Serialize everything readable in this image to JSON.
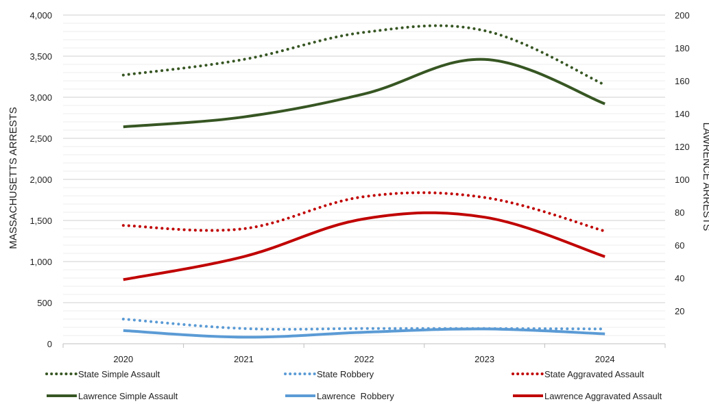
{
  "chart_data": {
    "type": "line",
    "categories": [
      "2020",
      "2021",
      "2022",
      "2023",
      "2024"
    ],
    "left_axis": {
      "label": "MASSACHUSETTS ARRESTS",
      "ylim": [
        0,
        4000
      ],
      "ticks": [
        0,
        500,
        1000,
        1500,
        2000,
        2500,
        3000,
        3500,
        4000
      ],
      "tick_labels": [
        "0",
        "500",
        "1,000",
        "1,500",
        "2,000",
        "2,500",
        "3,000",
        "3,500",
        "4,000"
      ]
    },
    "right_axis": {
      "label": "LAWRENCE ARRESTS",
      "ylim": [
        0,
        200
      ],
      "ticks": [
        20,
        40,
        60,
        80,
        100,
        120,
        140,
        160,
        180,
        200
      ],
      "tick_labels": [
        "20",
        "40",
        "60",
        "80",
        "100",
        "120",
        "140",
        "160",
        "180",
        "200"
      ]
    },
    "grid": true,
    "legend_position": "bottom",
    "series": [
      {
        "name": "State Simple Assault",
        "axis": "left",
        "style": "dotted",
        "color": "#375623",
        "values": [
          3270,
          3460,
          3790,
          3810,
          3150
        ]
      },
      {
        "name": "State Robbery",
        "axis": "left",
        "style": "dotted",
        "color": "#5b9bd5",
        "values": [
          300,
          185,
          185,
          185,
          180
        ]
      },
      {
        "name": "State Aggravated Assault",
        "axis": "left",
        "style": "dotted",
        "color": "#c00000",
        "values": [
          1440,
          1400,
          1790,
          1780,
          1370
        ]
      },
      {
        "name": "Lawrence Simple Assault",
        "axis": "right",
        "style": "solid",
        "color": "#375623",
        "values": [
          132,
          138,
          152,
          173,
          146
        ]
      },
      {
        "name": "Lawrence  Robbery",
        "axis": "right",
        "style": "solid",
        "color": "#5b9bd5",
        "values": [
          8,
          4,
          7,
          9,
          6
        ]
      },
      {
        "name": "Lawrence Aggravated Assault",
        "axis": "right",
        "style": "solid",
        "color": "#c00000",
        "values": [
          39,
          53,
          76,
          77,
          53
        ]
      }
    ]
  }
}
